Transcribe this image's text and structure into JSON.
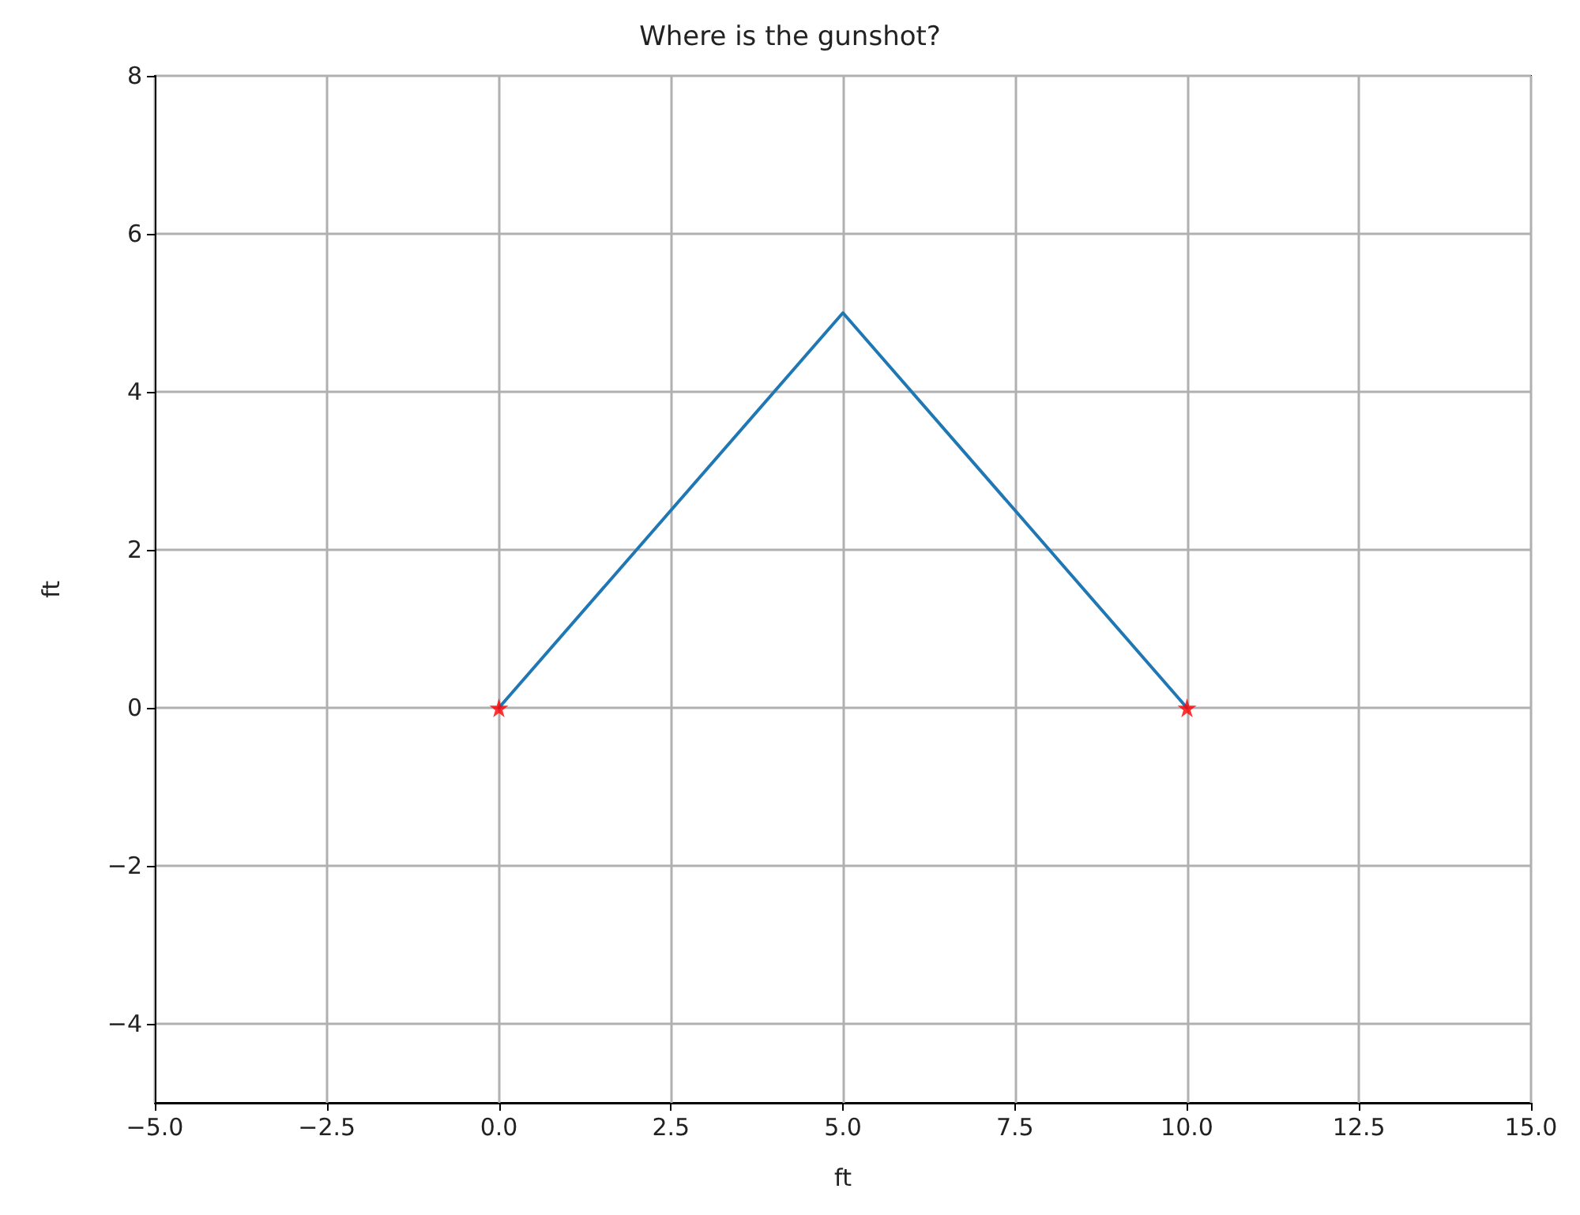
{
  "chart_data": {
    "type": "line",
    "title": "Where is the gunshot?",
    "xlabel": "ft",
    "ylabel": "ft",
    "xlim": [
      -5,
      15
    ],
    "ylim": [
      -5,
      8
    ],
    "xticks": [
      {
        "value": -5,
        "label": "−5.0"
      },
      {
        "value": -2.5,
        "label": "−2.5"
      },
      {
        "value": 0,
        "label": "0.0"
      },
      {
        "value": 2.5,
        "label": "2.5"
      },
      {
        "value": 5,
        "label": "5.0"
      },
      {
        "value": 7.5,
        "label": "7.5"
      },
      {
        "value": 10,
        "label": "10.0"
      },
      {
        "value": 12.5,
        "label": "12.5"
      },
      {
        "value": 15,
        "label": "15.0"
      }
    ],
    "yticks": [
      {
        "value": -4,
        "label": "−4"
      },
      {
        "value": -2,
        "label": "−2"
      },
      0,
      2,
      4,
      6,
      8
    ],
    "grid": true,
    "series": [
      {
        "color": "#1f77b4",
        "x": [
          0,
          5,
          10
        ],
        "values": [
          0,
          5,
          0
        ],
        "marker": "none",
        "line_style": "solid"
      },
      {
        "type": "scatter",
        "color": "#ff0000",
        "x": [
          0,
          10
        ],
        "values": [
          0,
          0
        ],
        "marker": "star"
      }
    ]
  }
}
